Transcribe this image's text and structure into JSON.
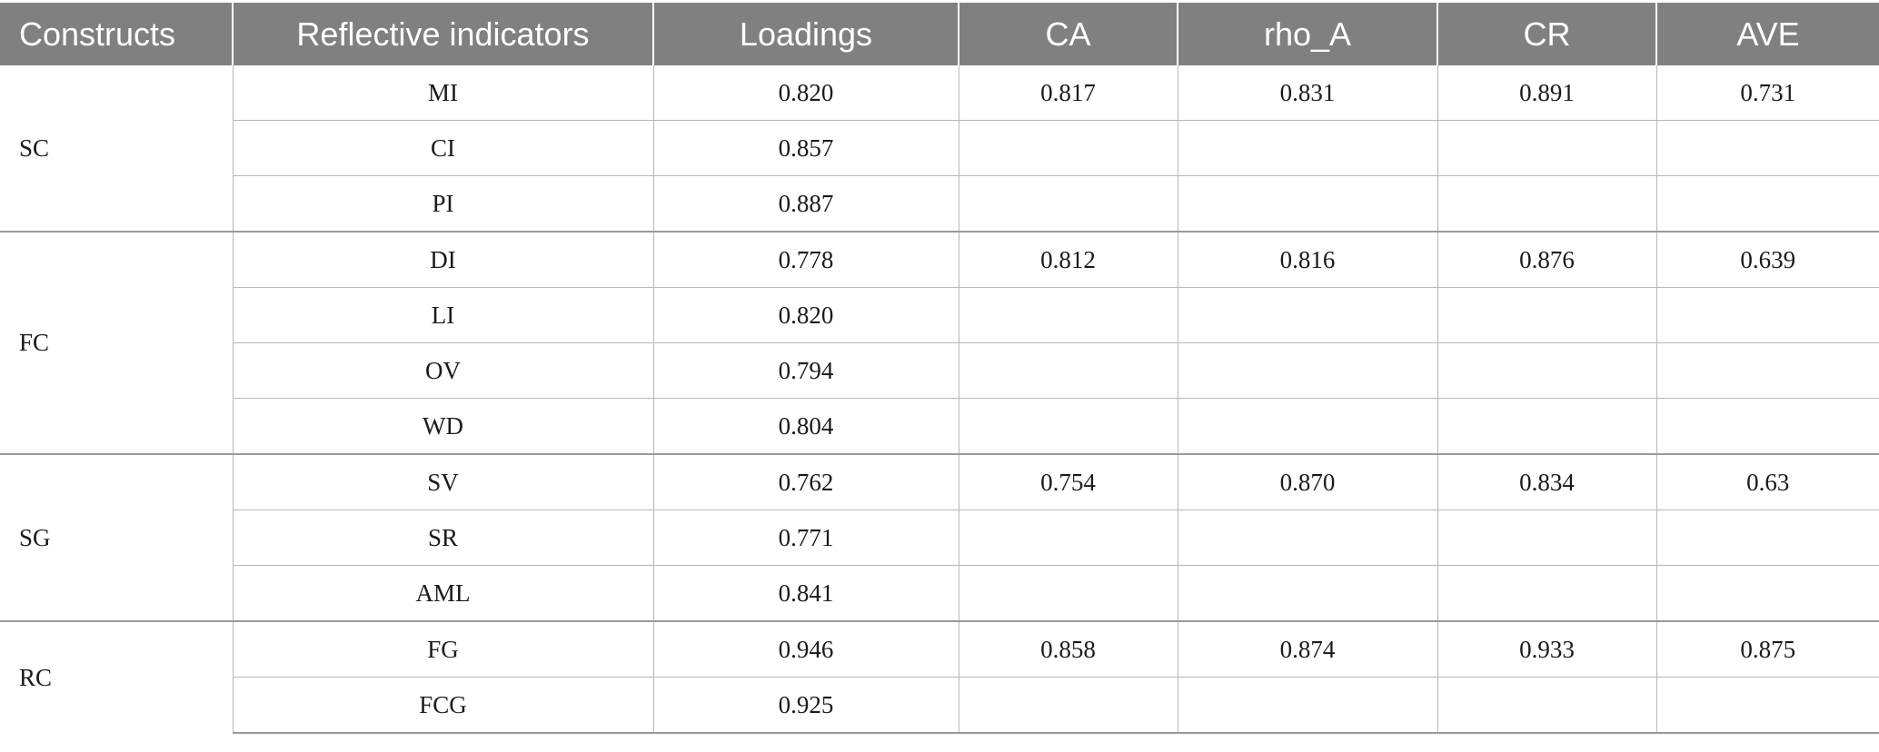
{
  "headers": [
    "Constructs",
    "Reflective indicators",
    "Loadings",
    "CA",
    "rho_A",
    "CR",
    "AVE"
  ],
  "groups": [
    {
      "construct": "SC",
      "ca": "0.817",
      "rho_a": "0.831",
      "cr": "0.891",
      "ave": "0.731",
      "rows": [
        {
          "indicator": "MI",
          "loading": "0.820"
        },
        {
          "indicator": "CI",
          "loading": "0.857"
        },
        {
          "indicator": "PI",
          "loading": "0.887"
        }
      ]
    },
    {
      "construct": "FC",
      "ca": "0.812",
      "rho_a": "0.816",
      "cr": "0.876",
      "ave": "0.639",
      "rows": [
        {
          "indicator": "DI",
          "loading": "0.778"
        },
        {
          "indicator": "LI",
          "loading": "0.820"
        },
        {
          "indicator": "OV",
          "loading": "0.794"
        },
        {
          "indicator": "WD",
          "loading": "0.804"
        }
      ]
    },
    {
      "construct": "SG",
      "ca": "0.754",
      "rho_a": "0.870",
      "cr": "0.834",
      "ave": "0.63",
      "rows": [
        {
          "indicator": "SV",
          "loading": "0.762"
        },
        {
          "indicator": "SR",
          "loading": "0.771"
        },
        {
          "indicator": "AML",
          "loading": "0.841"
        }
      ]
    },
    {
      "construct": "RC",
      "ca": "0.858",
      "rho_a": "0.874",
      "cr": "0.933",
      "ave": "0.875",
      "rows": [
        {
          "indicator": "FG",
          "loading": "0.946"
        },
        {
          "indicator": "FCG",
          "loading": "0.925"
        }
      ]
    }
  ]
}
